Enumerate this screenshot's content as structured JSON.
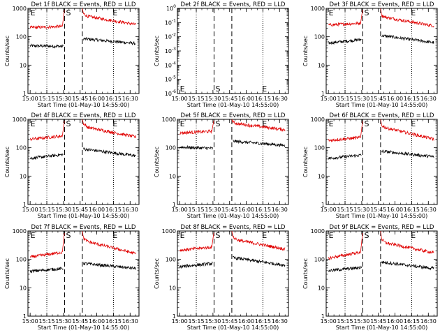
{
  "colors": {
    "events": "#000000",
    "lld": "#e00000",
    "background": "#ffffff",
    "frame": "#000000"
  },
  "chart_data": [
    {
      "type": "line",
      "title": "Det 1f BLACK = Events, RED = LLD",
      "xlabel": "Start Time (01-May-10 14:55:00)",
      "ylabel": "Counts/sec",
      "log_y": true,
      "ylim": [
        1,
        1000
      ],
      "y_ticks": [
        "1",
        "10",
        "100",
        "1000"
      ],
      "y_tick_values": [
        1,
        10,
        100,
        1000
      ],
      "xlim_minutes": [
        -2,
        98
      ],
      "x_ticks": [
        "15:00",
        "15:15",
        "15:30",
        "15:45",
        "16:00",
        "16:15",
        "16:30"
      ],
      "x_tick_minutes": [
        0,
        15,
        30,
        45,
        60,
        75,
        90
      ],
      "dotted_x_minutes": [
        15,
        75
      ],
      "dashed_x_minutes": [
        31,
        47
      ],
      "markers": [
        {
          "label": "E",
          "minute": -1,
          "position": "top"
        },
        {
          "label": "S",
          "minute": 31,
          "position": "top"
        },
        {
          "label": "E",
          "minute": 73,
          "position": "top"
        }
      ],
      "series": [
        {
          "name": "BLACK = Events",
          "color": "#000000",
          "segments": [
            {
              "x": [
                0,
                30
              ],
              "y": [
                48,
                46
              ]
            },
            {
              "x": [
                48,
                95
              ],
              "y": [
                85,
                58
              ]
            }
          ]
        },
        {
          "name": "RED = LLD",
          "color": "#e00000",
          "segments": [
            {
              "x": [
                0,
                29,
                31
              ],
              "y": [
                210,
                230,
                1000
              ]
            },
            {
              "x": [
                47,
                48,
                52,
                95
              ],
              "y": [
                1000,
                650,
                520,
                270
              ]
            }
          ]
        }
      ]
    },
    {
      "type": "line",
      "title": "Det 2f BLACK = Events, RED = LLD",
      "xlabel": "Start Time (01-May-10 14:55:00)",
      "ylabel": "Counts/sec",
      "log_y": true,
      "ylim": [
        1e-06,
        1
      ],
      "y_ticks": [
        "10",
        "10",
        "10",
        "10",
        "10",
        "10",
        "10"
      ],
      "y_tick_exponents": [
        "0",
        "-1",
        "-2",
        "-3",
        "-4",
        "-5",
        "-6"
      ],
      "y_tick_values": [
        1,
        0.1,
        0.01,
        0.001,
        0.0001,
        1e-05,
        1e-06
      ],
      "xlim_minutes": [
        -2,
        98
      ],
      "x_ticks": [
        "15:00",
        "15:15",
        "15:30",
        "15:45",
        "16:00",
        "16:15",
        "16:30"
      ],
      "x_tick_minutes": [
        0,
        15,
        30,
        45,
        60,
        75,
        90
      ],
      "dotted_x_minutes": [
        15,
        75
      ],
      "dashed_x_minutes": [
        31,
        47
      ],
      "markers": [
        {
          "label": "E",
          "minute": -1,
          "position": "bottom"
        },
        {
          "label": "S",
          "minute": 31,
          "position": "bottom"
        },
        {
          "label": "E",
          "minute": 73,
          "position": "bottom"
        }
      ],
      "series": []
    },
    {
      "type": "line",
      "title": "Det 3f BLACK = Events, RED = LLD",
      "xlabel": "Start Time (01-May-10 14:55:00)",
      "ylabel": "Counts/sec",
      "log_y": true,
      "ylim": [
        1,
        1000
      ],
      "y_ticks": [
        "1",
        "10",
        "100",
        "1000"
      ],
      "y_tick_values": [
        1,
        10,
        100,
        1000
      ],
      "xlim_minutes": [
        -2,
        98
      ],
      "x_ticks": [
        "15:00",
        "15:15",
        "15:30",
        "15:45",
        "16:00",
        "16:15",
        "16:30"
      ],
      "x_tick_minutes": [
        0,
        15,
        30,
        45,
        60,
        75,
        90
      ],
      "dotted_x_minutes": [
        15,
        75
      ],
      "dashed_x_minutes": [
        31,
        47
      ],
      "markers": [
        {
          "label": "E",
          "minute": -1,
          "position": "top"
        },
        {
          "label": "S",
          "minute": 31,
          "position": "top"
        },
        {
          "label": "E",
          "minute": 73,
          "position": "top"
        }
      ],
      "series": [
        {
          "name": "BLACK = Events",
          "color": "#000000",
          "segments": [
            {
              "x": [
                0,
                30
              ],
              "y": [
                60,
                80
              ]
            },
            {
              "x": [
                48,
                95
              ],
              "y": [
                110,
                62
              ]
            }
          ]
        },
        {
          "name": "RED = LLD",
          "color": "#e00000",
          "segments": [
            {
              "x": [
                0,
                29,
                31
              ],
              "y": [
                260,
                300,
                1000
              ]
            },
            {
              "x": [
                47,
                48,
                52,
                95
              ],
              "y": [
                1000,
                560,
                480,
                240
              ]
            }
          ]
        }
      ]
    },
    {
      "type": "line",
      "title": "Det 4f BLACK = Events, RED = LLD",
      "xlabel": "Start Time (01-May-10 14:55:00)",
      "ylabel": "Counts/sec",
      "log_y": true,
      "ylim": [
        1,
        1000
      ],
      "y_ticks": [
        "1",
        "10",
        "100",
        "1000"
      ],
      "y_tick_values": [
        1,
        10,
        100,
        1000
      ],
      "xlim_minutes": [
        -2,
        98
      ],
      "x_ticks": [
        "15:00",
        "15:15",
        "15:30",
        "15:45",
        "16:00",
        "16:15",
        "16:30"
      ],
      "x_tick_minutes": [
        0,
        15,
        30,
        45,
        60,
        75,
        90
      ],
      "dotted_x_minutes": [
        15,
        75
      ],
      "dashed_x_minutes": [
        31,
        47
      ],
      "markers": [
        {
          "label": "E",
          "minute": -1,
          "position": "top"
        },
        {
          "label": "S",
          "minute": 31,
          "position": "top"
        },
        {
          "label": "E",
          "minute": 73,
          "position": "top"
        }
      ],
      "series": [
        {
          "name": "BLACK = Events",
          "color": "#000000",
          "segments": [
            {
              "x": [
                0,
                30
              ],
              "y": [
                42,
                58
              ]
            },
            {
              "x": [
                48,
                95
              ],
              "y": [
                90,
                52
              ]
            }
          ]
        },
        {
          "name": "RED = LLD",
          "color": "#e00000",
          "segments": [
            {
              "x": [
                0,
                29,
                31
              ],
              "y": [
                200,
                260,
                1000
              ]
            },
            {
              "x": [
                47,
                48,
                52,
                95
              ],
              "y": [
                1000,
                700,
                520,
                240
              ]
            }
          ]
        }
      ]
    },
    {
      "type": "line",
      "title": "Det 5f BLACK = Events, RED = LLD",
      "xlabel": "Start Time (01-May-10 14:55:00)",
      "ylabel": "Counts/sec",
      "log_y": true,
      "ylim": [
        1,
        1000
      ],
      "y_ticks": [
        "1",
        "10",
        "100",
        "1000"
      ],
      "y_tick_values": [
        1,
        10,
        100,
        1000
      ],
      "xlim_minutes": [
        -2,
        98
      ],
      "x_ticks": [
        "15:00",
        "15:15",
        "15:30",
        "15:45",
        "16:00",
        "16:15",
        "16:30"
      ],
      "x_tick_minutes": [
        0,
        15,
        30,
        45,
        60,
        75,
        90
      ],
      "dotted_x_minutes": [
        15,
        75
      ],
      "dashed_x_minutes": [
        31,
        47
      ],
      "markers": [
        {
          "label": "E",
          "minute": -1,
          "position": "top"
        },
        {
          "label": "S",
          "minute": 31,
          "position": "top"
        },
        {
          "label": "E",
          "minute": 73,
          "position": "top"
        }
      ],
      "series": [
        {
          "name": "BLACK = Events",
          "color": "#000000",
          "segments": [
            {
              "x": [
                0,
                30
              ],
              "y": [
                105,
                95
              ]
            },
            {
              "x": [
                48,
                95
              ],
              "y": [
                170,
                120
              ]
            }
          ]
        },
        {
          "name": "RED = LLD",
          "color": "#e00000",
          "segments": [
            {
              "x": [
                0,
                29,
                31
              ],
              "y": [
                330,
                380,
                1000
              ]
            },
            {
              "x": [
                47,
                48,
                52,
                95
              ],
              "y": [
                1000,
                800,
                700,
                430
              ]
            }
          ]
        }
      ]
    },
    {
      "type": "line",
      "title": "Det 6f BLACK = Events, RED = LLD",
      "xlabel": "Start Time (01-May-10 14:55:00)",
      "ylabel": "Counts/sec",
      "log_y": true,
      "ylim": [
        1,
        1000
      ],
      "y_ticks": [
        "1",
        "10",
        "100",
        "1000"
      ],
      "y_tick_values": [
        1,
        10,
        100,
        1000
      ],
      "xlim_minutes": [
        -2,
        98
      ],
      "x_ticks": [
        "15:00",
        "15:15",
        "15:30",
        "15:45",
        "16:00",
        "16:15",
        "16:30"
      ],
      "x_tick_minutes": [
        0,
        15,
        30,
        45,
        60,
        75,
        90
      ],
      "dotted_x_minutes": [
        15,
        75
      ],
      "dashed_x_minutes": [
        31,
        47
      ],
      "markers": [
        {
          "label": "E",
          "minute": -1,
          "position": "top"
        },
        {
          "label": "S",
          "minute": 31,
          "position": "top"
        },
        {
          "label": "E",
          "minute": 73,
          "position": "top"
        }
      ],
      "series": [
        {
          "name": "BLACK = Events",
          "color": "#000000",
          "segments": [
            {
              "x": [
                0,
                30
              ],
              "y": [
                42,
                55
              ]
            },
            {
              "x": [
                48,
                95
              ],
              "y": [
                75,
                48
              ]
            }
          ]
        },
        {
          "name": "RED = LLD",
          "color": "#e00000",
          "segments": [
            {
              "x": [
                0,
                29,
                31
              ],
              "y": [
                180,
                230,
                1000
              ]
            },
            {
              "x": [
                47,
                48,
                52,
                95
              ],
              "y": [
                1000,
                600,
                500,
                200
              ]
            }
          ]
        }
      ]
    },
    {
      "type": "line",
      "title": "Det 7f BLACK = Events, RED = LLD",
      "xlabel": "Start Time (01-May-10 14:55:00)",
      "ylabel": "Counts/sec",
      "log_y": true,
      "ylim": [
        1,
        1000
      ],
      "y_ticks": [
        "1",
        "10",
        "100",
        "1000"
      ],
      "y_tick_values": [
        1,
        10,
        100,
        1000
      ],
      "xlim_minutes": [
        -2,
        98
      ],
      "x_ticks": [
        "15:00",
        "15:15",
        "15:30",
        "15:45",
        "16:00",
        "16:15",
        "16:30"
      ],
      "x_tick_minutes": [
        0,
        15,
        30,
        45,
        60,
        75,
        90
      ],
      "dotted_x_minutes": [
        15,
        75
      ],
      "dashed_x_minutes": [
        31,
        47
      ],
      "markers": [
        {
          "label": "E",
          "minute": -1,
          "position": "top"
        },
        {
          "label": "S",
          "minute": 31,
          "position": "top"
        },
        {
          "label": "E",
          "minute": 73,
          "position": "top"
        }
      ],
      "series": [
        {
          "name": "BLACK = Events",
          "color": "#000000",
          "segments": [
            {
              "x": [
                0,
                30
              ],
              "y": [
                38,
                48
              ]
            },
            {
              "x": [
                48,
                95
              ],
              "y": [
                72,
                48
              ]
            }
          ]
        },
        {
          "name": "RED = LLD",
          "color": "#e00000",
          "segments": [
            {
              "x": [
                0,
                29,
                31
              ],
              "y": [
                120,
                180,
                1000
              ]
            },
            {
              "x": [
                47,
                48,
                52,
                95
              ],
              "y": [
                1000,
                560,
                420,
                160
              ]
            }
          ]
        }
      ]
    },
    {
      "type": "line",
      "title": "Det 8f BLACK = Events, RED = LLD",
      "xlabel": "Start Time (01-May-10 14:55:00)",
      "ylabel": "Counts/sec",
      "log_y": true,
      "ylim": [
        1,
        1000
      ],
      "y_ticks": [
        "1",
        "10",
        "100",
        "1000"
      ],
      "y_tick_values": [
        1,
        10,
        100,
        1000
      ],
      "xlim_minutes": [
        -2,
        98
      ],
      "x_ticks": [
        "15:00",
        "15:15",
        "15:30",
        "15:45",
        "16:00",
        "16:15",
        "16:30"
      ],
      "x_tick_minutes": [
        0,
        15,
        30,
        45,
        60,
        75,
        90
      ],
      "dotted_x_minutes": [
        15,
        75
      ],
      "dashed_x_minutes": [
        31,
        47
      ],
      "markers": [
        {
          "label": "E",
          "minute": -1,
          "position": "top"
        },
        {
          "label": "S",
          "minute": 31,
          "position": "top"
        },
        {
          "label": "E",
          "minute": 73,
          "position": "top"
        }
      ],
      "series": [
        {
          "name": "BLACK = Events",
          "color": "#000000",
          "segments": [
            {
              "x": [
                0,
                30
              ],
              "y": [
                55,
                72
              ]
            },
            {
              "x": [
                48,
                95
              ],
              "y": [
                115,
                62
              ]
            }
          ]
        },
        {
          "name": "RED = LLD",
          "color": "#e00000",
          "segments": [
            {
              "x": [
                0,
                29,
                31
              ],
              "y": [
                210,
                270,
                1000
              ]
            },
            {
              "x": [
                47,
                48,
                52,
                95
              ],
              "y": [
                1000,
                620,
                480,
                230
              ]
            }
          ]
        }
      ]
    },
    {
      "type": "line",
      "title": "Det 9f BLACK = Events, RED = LLD",
      "xlabel": "Start Time (01-May-10 14:55:00)",
      "ylabel": "Counts/sec",
      "log_y": true,
      "ylim": [
        1,
        1000
      ],
      "y_ticks": [
        "1",
        "10",
        "100",
        "1000"
      ],
      "y_tick_values": [
        1,
        10,
        100,
        1000
      ],
      "xlim_minutes": [
        -2,
        98
      ],
      "x_ticks": [
        "15:00",
        "15:15",
        "15:30",
        "15:45",
        "16:00",
        "16:15",
        "16:30"
      ],
      "x_tick_minutes": [
        0,
        15,
        30,
        45,
        60,
        75,
        90
      ],
      "dotted_x_minutes": [
        15,
        75
      ],
      "dashed_x_minutes": [
        31,
        47
      ],
      "markers": [
        {
          "label": "E",
          "minute": -1,
          "position": "top"
        },
        {
          "label": "S",
          "minute": 31,
          "position": "top"
        },
        {
          "label": "E",
          "minute": 73,
          "position": "top"
        }
      ],
      "series": [
        {
          "name": "BLACK = Events",
          "color": "#000000",
          "segments": [
            {
              "x": [
                0,
                30
              ],
              "y": [
                40,
                52
              ]
            },
            {
              "x": [
                48,
                95
              ],
              "y": [
                80,
                48
              ]
            }
          ]
        },
        {
          "name": "RED = LLD",
          "color": "#e00000",
          "segments": [
            {
              "x": [
                0,
                29,
                31
              ],
              "y": [
                110,
                180,
                1000
              ]
            },
            {
              "x": [
                47,
                48,
                52,
                95
              ],
              "y": [
                1000,
                500,
                380,
                170
              ]
            }
          ]
        }
      ]
    }
  ]
}
